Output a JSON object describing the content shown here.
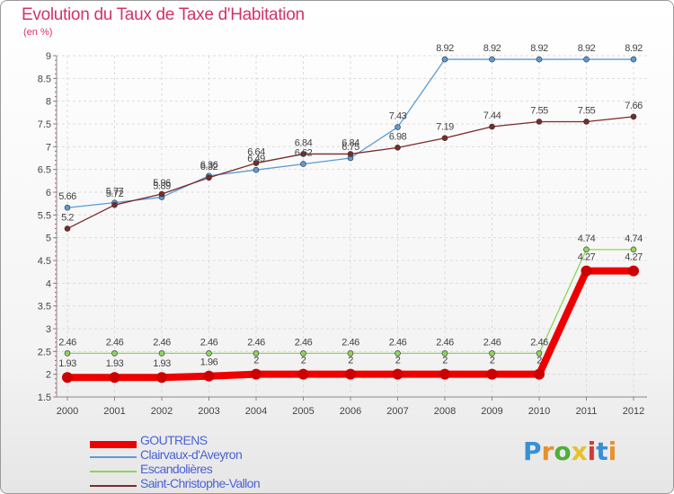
{
  "header": {
    "title": "Evolution du Taux de Taxe d'Habitation",
    "unit": "(en %)"
  },
  "logo": {
    "text": "Proxiti"
  },
  "chart_data": {
    "type": "line",
    "title": "Evolution du Taux de Taxe d'Habitation",
    "ylabel": "(en %)",
    "xlabel": "",
    "x": [
      "2000",
      "2001",
      "2002",
      "2003",
      "2004",
      "2005",
      "2006",
      "2007",
      "2008",
      "2009",
      "2010",
      "2011",
      "2012"
    ],
    "ylim": [
      1.5,
      9
    ],
    "yticks": [
      "1.5",
      "2",
      "2.5",
      "3",
      "3.5",
      "4",
      "4.5",
      "5",
      "5.5",
      "6",
      "6.5",
      "7",
      "7.5",
      "8",
      "8.5",
      "9"
    ],
    "grid": true,
    "legend_position": "bottom-left",
    "series": [
      {
        "name": "GOUTRENS",
        "color": "#ee0000",
        "values": [
          1.93,
          1.93,
          1.93,
          1.96,
          2,
          2,
          2,
          2,
          2,
          2,
          2,
          4.27,
          4.27
        ],
        "labels": [
          "1.93",
          "1.93",
          "1.93",
          "1.96",
          "2",
          "2",
          "2",
          "2",
          "2",
          "2",
          "2",
          "4.27",
          "4.27"
        ]
      },
      {
        "name": "Clairvaux-d'Aveyron",
        "color": "#5b9bd5",
        "values": [
          5.66,
          5.77,
          5.89,
          6.36,
          6.49,
          6.62,
          6.75,
          7.43,
          8.92,
          8.92,
          8.92,
          8.92,
          8.92
        ],
        "labels": [
          "5.66",
          "5.77",
          "5.89",
          "6.36",
          "6.49",
          "6.62",
          "6.75",
          "7.43",
          "8.92",
          "8.92",
          "8.92",
          "8.92",
          "8.92"
        ]
      },
      {
        "name": "Escandolières",
        "color": "#8fd45b",
        "values": [
          2.46,
          2.46,
          2.46,
          2.46,
          2.46,
          2.46,
          2.46,
          2.46,
          2.46,
          2.46,
          2.46,
          4.74,
          4.74
        ],
        "labels": [
          "2.46",
          "2.46",
          "2.46",
          "2.46",
          "2.46",
          "2.46",
          "2.46",
          "2.46",
          "2.46",
          "2.46",
          "2.46",
          "4.74",
          "4.74"
        ]
      },
      {
        "name": "Saint-Christophe-Vallon",
        "color": "#7a2a2a",
        "values": [
          5.2,
          5.72,
          5.96,
          6.32,
          6.64,
          6.84,
          6.84,
          6.98,
          7.19,
          7.44,
          7.55,
          7.55,
          7.66
        ],
        "labels": [
          "5.2",
          "5.72",
          "5.96",
          "6.32",
          "6.64",
          "6.84",
          "6.84",
          "6.98",
          "7.19",
          "7.44",
          "7.55",
          "7.55",
          "7.66"
        ]
      }
    ]
  }
}
